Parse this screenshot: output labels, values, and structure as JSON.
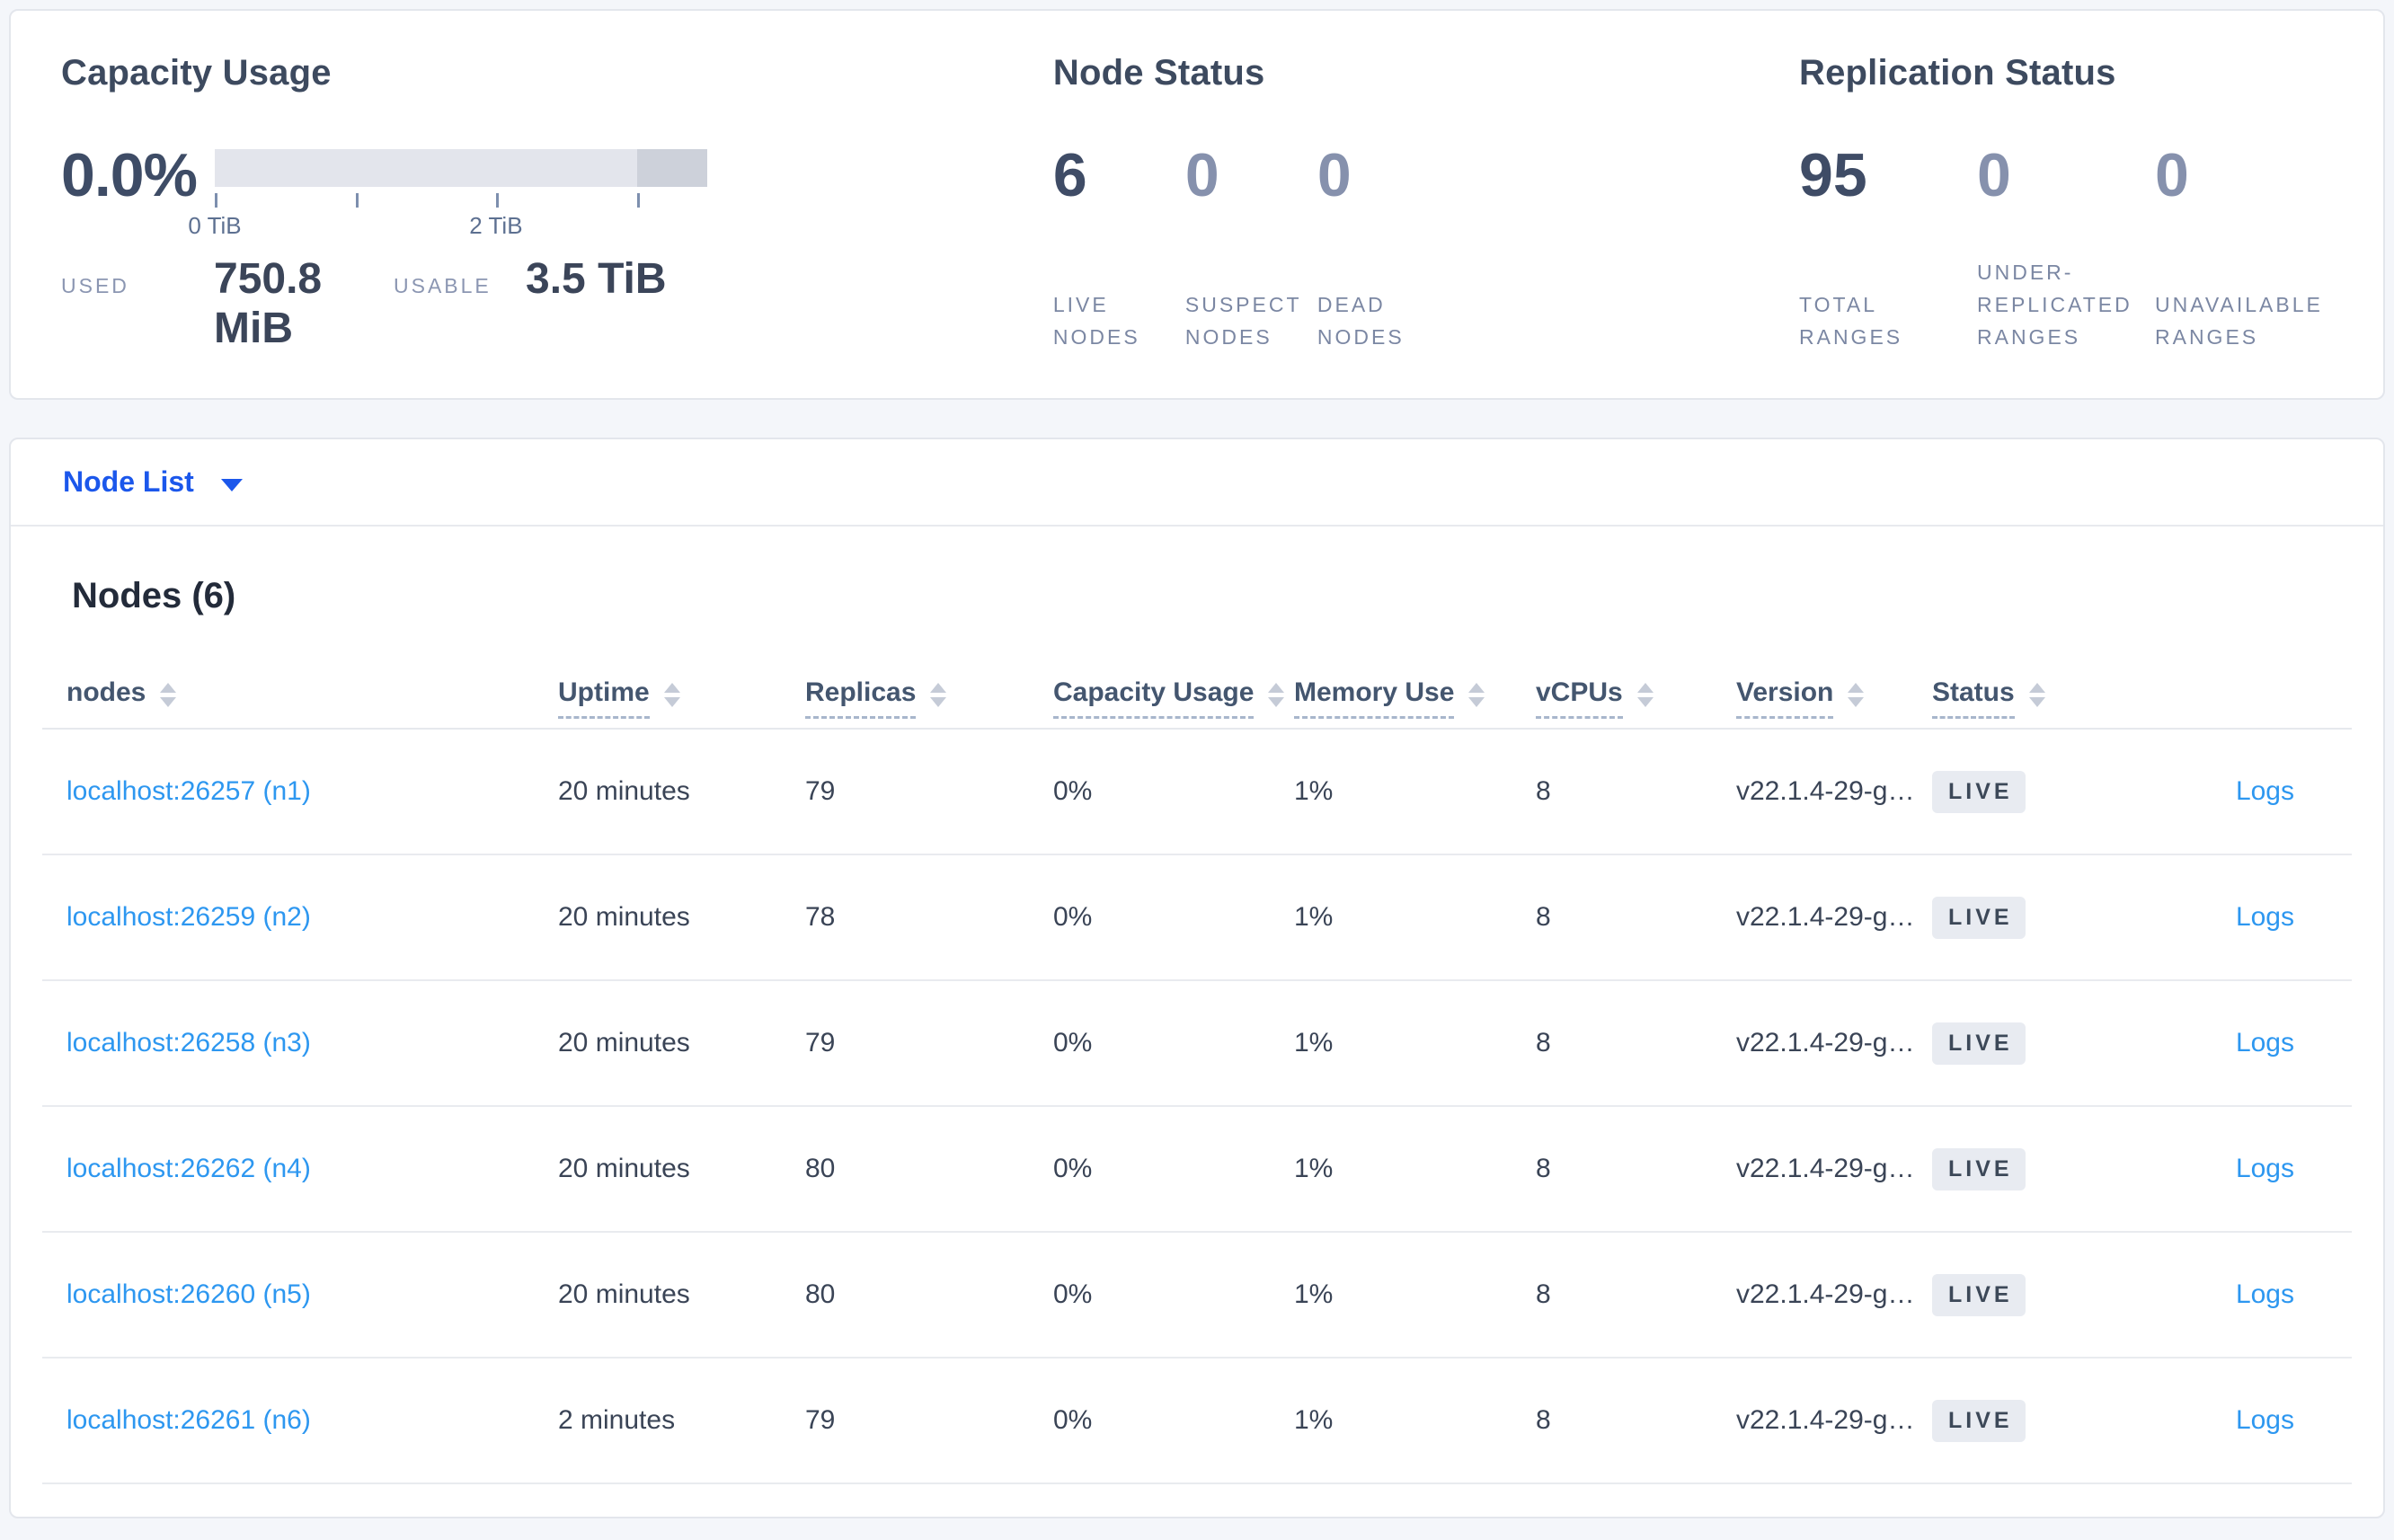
{
  "summary": {
    "capacity": {
      "title": "Capacity Usage",
      "percent": "0.0%",
      "gauge": {
        "ticks": [
          {
            "pos": 0,
            "label": "0 TiB"
          },
          {
            "pos": 28.6,
            "label": ""
          },
          {
            "pos": 57.1,
            "label": "2 TiB"
          },
          {
            "pos": 85.7,
            "label": ""
          }
        ],
        "dark_segment_start_pct": 85.7
      },
      "used_label": "USED",
      "used_value": "750.8 MiB",
      "usable_label": "USABLE",
      "usable_value": "3.5 TiB"
    },
    "node_status": {
      "title": "Node Status",
      "stats": [
        {
          "value": "6",
          "tone": "dark",
          "label_lines": [
            "LIVE",
            "NODES"
          ]
        },
        {
          "value": "0",
          "tone": "light",
          "label_lines": [
            "SUSPECT",
            "NODES"
          ]
        },
        {
          "value": "0",
          "tone": "light",
          "label_lines": [
            "DEAD",
            "NODES"
          ]
        }
      ]
    },
    "replication": {
      "title": "Replication Status",
      "stats": [
        {
          "value": "95",
          "tone": "dark",
          "label_lines": [
            "TOTAL",
            "RANGES"
          ]
        },
        {
          "value": "0",
          "tone": "light",
          "label_lines": [
            "UNDER-",
            "REPLICATED",
            "RANGES"
          ]
        },
        {
          "value": "0",
          "tone": "light",
          "label_lines": [
            "UNAVAILABLE",
            "RANGES"
          ]
        }
      ]
    }
  },
  "view_selector": {
    "label": "Node List"
  },
  "nodes_section": {
    "heading": "Nodes (6)",
    "columns": [
      {
        "label": "nodes",
        "underline": false,
        "sortable": true
      },
      {
        "label": "Uptime",
        "underline": true,
        "sortable": true
      },
      {
        "label": "Replicas",
        "underline": true,
        "sortable": true
      },
      {
        "label": "Capacity Usage",
        "underline": true,
        "sortable": true
      },
      {
        "label": "Memory Use",
        "underline": true,
        "sortable": true
      },
      {
        "label": "vCPUs",
        "underline": true,
        "sortable": true
      },
      {
        "label": "Version",
        "underline": true,
        "sortable": true
      },
      {
        "label": "Status",
        "underline": true,
        "sortable": true
      },
      {
        "label": "",
        "underline": false,
        "sortable": false
      }
    ],
    "rows": [
      {
        "node": "localhost:26257 (n1)",
        "uptime": "20 minutes",
        "replicas": "79",
        "capacity_usage": "0%",
        "memory_use": "1%",
        "vcpus": "8",
        "version": "v22.1.4-29-g…",
        "status": "LIVE",
        "logs": "Logs"
      },
      {
        "node": "localhost:26259 (n2)",
        "uptime": "20 minutes",
        "replicas": "78",
        "capacity_usage": "0%",
        "memory_use": "1%",
        "vcpus": "8",
        "version": "v22.1.4-29-g…",
        "status": "LIVE",
        "logs": "Logs"
      },
      {
        "node": "localhost:26258 (n3)",
        "uptime": "20 minutes",
        "replicas": "79",
        "capacity_usage": "0%",
        "memory_use": "1%",
        "vcpus": "8",
        "version": "v22.1.4-29-g…",
        "status": "LIVE",
        "logs": "Logs"
      },
      {
        "node": "localhost:26262 (n4)",
        "uptime": "20 minutes",
        "replicas": "80",
        "capacity_usage": "0%",
        "memory_use": "1%",
        "vcpus": "8",
        "version": "v22.1.4-29-g…",
        "status": "LIVE",
        "logs": "Logs"
      },
      {
        "node": "localhost:26260 (n5)",
        "uptime": "20 minutes",
        "replicas": "80",
        "capacity_usage": "0%",
        "memory_use": "1%",
        "vcpus": "8",
        "version": "v22.1.4-29-g…",
        "status": "LIVE",
        "logs": "Logs"
      },
      {
        "node": "localhost:26261 (n6)",
        "uptime": "2 minutes",
        "replicas": "79",
        "capacity_usage": "0%",
        "memory_use": "1%",
        "vcpus": "8",
        "version": "v22.1.4-29-g…",
        "status": "LIVE",
        "logs": "Logs"
      }
    ]
  }
}
